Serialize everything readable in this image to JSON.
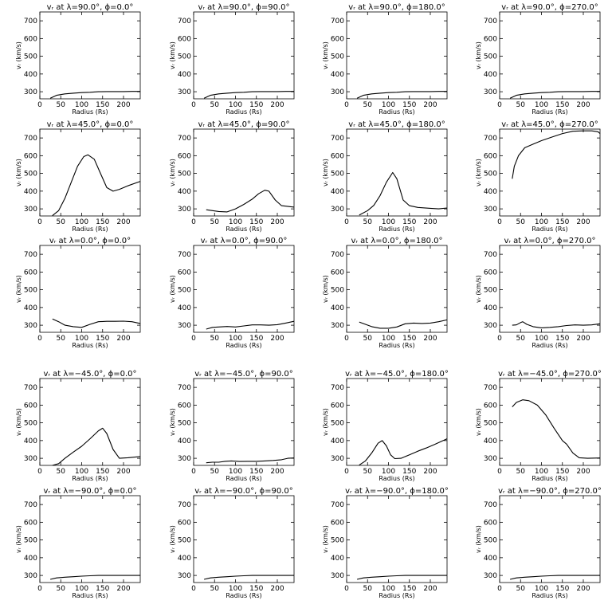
{
  "chart_data": {
    "type": "line",
    "layout": "5 rows x 4 columns grid of line plots",
    "xlim": [
      0,
      240
    ],
    "ylim": [
      260,
      750
    ],
    "xticks": [
      0,
      50,
      100,
      150,
      200
    ],
    "yticks": [
      300,
      400,
      500,
      600,
      700
    ],
    "xlabel": "Radius (Rs)",
    "ylabel": "v_r (km/s)",
    "ylabel_display": "vᵣ (km/s)",
    "line_color": "#000000",
    "grid": false,
    "panels": [
      {
        "title": "vᵣ at λ=90.0°, ϕ=0.0°",
        "x": [
          25,
          40,
          60,
          80,
          100,
          120,
          140,
          160,
          180,
          200,
          220,
          240
        ],
        "y": [
          263,
          280,
          288,
          292,
          295,
          297,
          300,
          301,
          301,
          301,
          302,
          302
        ]
      },
      {
        "title": "vᵣ at λ=90.0°, ϕ=90.0°",
        "x": [
          25,
          40,
          60,
          80,
          100,
          120,
          140,
          160,
          180,
          200,
          220,
          240
        ],
        "y": [
          263,
          280,
          288,
          292,
          295,
          297,
          300,
          301,
          301,
          301,
          302,
          302
        ]
      },
      {
        "title": "vᵣ at λ=90.0°, ϕ=180.0°",
        "x": [
          25,
          40,
          60,
          80,
          100,
          120,
          140,
          160,
          180,
          200,
          220,
          240
        ],
        "y": [
          263,
          280,
          288,
          292,
          295,
          297,
          300,
          301,
          301,
          301,
          302,
          302
        ]
      },
      {
        "title": "vᵣ at λ=90.0°, ϕ=270.0°",
        "x": [
          25,
          40,
          60,
          80,
          100,
          120,
          140,
          160,
          180,
          200,
          220,
          240
        ],
        "y": [
          263,
          280,
          288,
          292,
          295,
          297,
          300,
          301,
          301,
          301,
          302,
          302
        ]
      },
      {
        "title": "vᵣ at λ=45.0°, ϕ=0.0°",
        "x": [
          30,
          45,
          60,
          75,
          90,
          105,
          115,
          130,
          145,
          160,
          175,
          190,
          210,
          240
        ],
        "y": [
          262,
          290,
          360,
          450,
          540,
          595,
          605,
          580,
          500,
          420,
          400,
          410,
          430,
          455
        ]
      },
      {
        "title": "vᵣ at λ=45.0°, ϕ=90.0°",
        "x": [
          30,
          45,
          60,
          80,
          100,
          120,
          140,
          155,
          170,
          180,
          195,
          210,
          240
        ],
        "y": [
          295,
          290,
          285,
          283,
          300,
          325,
          355,
          385,
          405,
          400,
          350,
          318,
          310
        ]
      },
      {
        "title": "vᵣ at λ=45.0°, ϕ=180.0°",
        "x": [
          30,
          50,
          65,
          80,
          95,
          110,
          120,
          135,
          150,
          170,
          200,
          220,
          240
        ],
        "y": [
          265,
          290,
          320,
          375,
          450,
          505,
          470,
          350,
          318,
          308,
          303,
          300,
          305
        ]
      },
      {
        "title": "vᵣ at λ=45.0°, ϕ=270.0°",
        "x": [
          30,
          35,
          45,
          60,
          80,
          100,
          125,
          150,
          175,
          200,
          220,
          235,
          240
        ],
        "y": [
          470,
          540,
          600,
          645,
          665,
          685,
          705,
          725,
          738,
          740,
          740,
          735,
          725
        ]
      },
      {
        "title": "vᵣ at λ=0.0°, ϕ=0.0°",
        "x": [
          30,
          45,
          60,
          80,
          100,
          120,
          140,
          160,
          180,
          200,
          220,
          240
        ],
        "y": [
          335,
          320,
          300,
          292,
          288,
          305,
          320,
          322,
          322,
          323,
          320,
          310
        ]
      },
      {
        "title": "vᵣ at λ=0.0°, ϕ=90.0°",
        "x": [
          30,
          45,
          60,
          80,
          100,
          120,
          140,
          160,
          180,
          200,
          220,
          240
        ],
        "y": [
          278,
          288,
          290,
          293,
          290,
          296,
          302,
          302,
          300,
          303,
          312,
          322
        ]
      },
      {
        "title": "vᵣ at λ=0.0°, ϕ=180.0°",
        "x": [
          30,
          45,
          60,
          80,
          100,
          120,
          140,
          160,
          180,
          200,
          220,
          240
        ],
        "y": [
          318,
          305,
          292,
          283,
          283,
          290,
          308,
          312,
          310,
          312,
          320,
          330
        ]
      },
      {
        "title": "vᵣ at λ=0.0°, ϕ=270.0°",
        "x": [
          30,
          40,
          50,
          55,
          65,
          80,
          100,
          120,
          140,
          160,
          180,
          200,
          220,
          240
        ],
        "y": [
          300,
          302,
          315,
          320,
          305,
          292,
          285,
          288,
          292,
          298,
          302,
          300,
          302,
          308
        ]
      },
      {
        "title": "vᵣ at λ=−45.0°, ϕ=0.0°",
        "x": [
          30,
          45,
          60,
          80,
          100,
          120,
          140,
          150,
          160,
          175,
          190,
          210,
          240
        ],
        "y": [
          260,
          270,
          300,
          335,
          368,
          410,
          455,
          470,
          440,
          350,
          300,
          303,
          310
        ]
      },
      {
        "title": "vᵣ at λ=−45.0°, ϕ=90.0°",
        "x": [
          30,
          45,
          60,
          75,
          90,
          110,
          130,
          150,
          170,
          190,
          210,
          225,
          240
        ],
        "y": [
          275,
          278,
          278,
          283,
          285,
          282,
          283,
          283,
          285,
          288,
          292,
          300,
          302
        ]
      },
      {
        "title": "vᵣ at λ=−45.0°, ϕ=180.0°",
        "x": [
          30,
          45,
          60,
          75,
          85,
          95,
          105,
          115,
          130,
          150,
          170,
          190,
          210,
          240
        ],
        "y": [
          262,
          285,
          330,
          385,
          400,
          370,
          320,
          298,
          300,
          320,
          340,
          358,
          378,
          410
        ]
      },
      {
        "title": "vᵣ at λ=−45.0°, ϕ=270.0°",
        "x": [
          30,
          40,
          55,
          70,
          90,
          110,
          130,
          150,
          160,
          175,
          190,
          210,
          240
        ],
        "y": [
          590,
          615,
          630,
          625,
          600,
          545,
          470,
          400,
          380,
          330,
          303,
          300,
          302
        ]
      },
      {
        "title": "vᵣ at λ=−90.0°, ϕ=0.0°",
        "x": [
          25,
          40,
          60,
          80,
          100,
          120,
          140,
          160,
          180,
          200,
          220,
          240
        ],
        "y": [
          278,
          286,
          290,
          293,
          296,
          298,
          300,
          300,
          300,
          300,
          300,
          300
        ]
      },
      {
        "title": "vᵣ at λ=−90.0°, ϕ=90.0°",
        "x": [
          25,
          40,
          60,
          80,
          100,
          120,
          140,
          160,
          180,
          200,
          220,
          240
        ],
        "y": [
          278,
          286,
          290,
          293,
          296,
          298,
          300,
          300,
          300,
          300,
          300,
          300
        ]
      },
      {
        "title": "vᵣ at λ=−90.0°, ϕ=180.0°",
        "x": [
          25,
          40,
          60,
          80,
          100,
          120,
          140,
          160,
          180,
          200,
          220,
          240
        ],
        "y": [
          278,
          286,
          290,
          293,
          296,
          298,
          300,
          300,
          300,
          300,
          300,
          300
        ]
      },
      {
        "title": "vᵣ at λ=−90.0°, ϕ=270.0°",
        "x": [
          25,
          40,
          60,
          80,
          100,
          120,
          140,
          160,
          180,
          200,
          220,
          240
        ],
        "y": [
          278,
          286,
          290,
          293,
          296,
          298,
          300,
          300,
          300,
          300,
          300,
          300
        ]
      }
    ]
  }
}
